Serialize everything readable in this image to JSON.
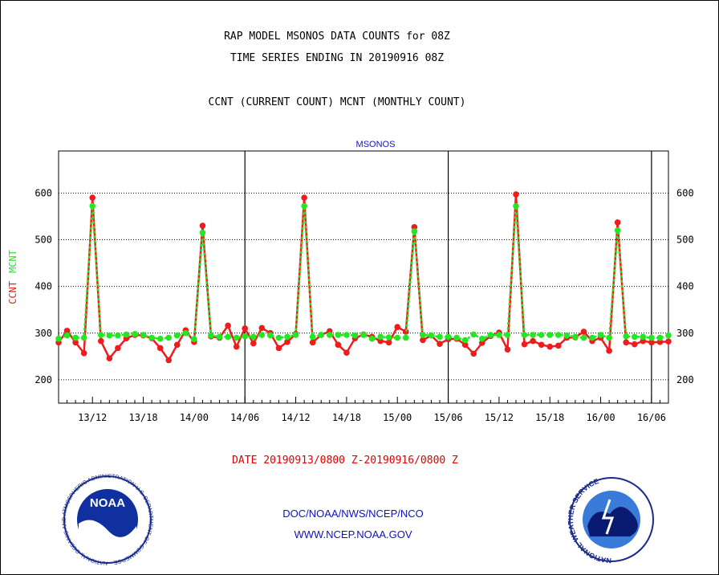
{
  "title_lines": [
    "RAP MODEL MSONOS DATA COUNTS for 08Z",
    "TIME SERIES ENDING IN 20190916 08Z",
    "CCNT (CURRENT COUNT) MCNT (MONTHLY COUNT)"
  ],
  "footer": {
    "line1": "DOC/NOAA/NWS/NCEP/NCO",
    "line2": "WWW.NCEP.NOAA.GOV"
  },
  "logos": {
    "left": "NOAA",
    "left_ring": "NATIONAL OCEANIC AND ATMOSPHERIC ADMINISTRATION U.S. DEPARTMENT OF COMMERCE",
    "right_ring": "NATIONAL WEATHER SERVICE"
  },
  "colors": {
    "ccnt": "#ee1c1c",
    "mcnt": "#22e822",
    "grid": "#000000",
    "text_blue": "#1010c8"
  },
  "chart_data": {
    "type": "line",
    "title": "MSONOS",
    "xlabel": "DATE 20190913/0800 Z-20190916/0800 Z",
    "ylabel": "CCNT MCNT",
    "ylabel_parts": [
      "CCNT",
      "MCNT"
    ],
    "ylim": [
      150,
      690
    ],
    "yticks": [
      200,
      300,
      400,
      500,
      600
    ],
    "x_start_hours_from_13_00": 8,
    "x_step_hours": 1,
    "xlim_hours_from_13_00": [
      8,
      80
    ],
    "xticks": [
      {
        "label": "13/12",
        "hours_from_13_00": 12
      },
      {
        "label": "13/18",
        "hours_from_13_00": 18
      },
      {
        "label": "14/00",
        "hours_from_13_00": 24
      },
      {
        "label": "14/06",
        "hours_from_13_00": 30
      },
      {
        "label": "14/12",
        "hours_from_13_00": 36
      },
      {
        "label": "14/18",
        "hours_from_13_00": 42
      },
      {
        "label": "15/00",
        "hours_from_13_00": 48
      },
      {
        "label": "15/06",
        "hours_from_13_00": 54
      },
      {
        "label": "15/12",
        "hours_from_13_00": 60
      },
      {
        "label": "15/18",
        "hours_from_13_00": 66
      },
      {
        "label": "16/00",
        "hours_from_13_00": 72
      },
      {
        "label": "16/06",
        "hours_from_13_00": 78
      }
    ],
    "day_boundaries_hours_from_13_00": [
      30,
      54,
      78
    ],
    "grid": true,
    "series": [
      {
        "name": "CCNT",
        "color": "#ee1c1c",
        "values": [
          280,
          305,
          280,
          257,
          590,
          283,
          246,
          268,
          289,
          296,
          295,
          289,
          268,
          242,
          275,
          306,
          281,
          530,
          293,
          290,
          316,
          271,
          310,
          278,
          311,
          300,
          268,
          281,
          298,
          590,
          280,
          296,
          304,
          275,
          258,
          289,
          297,
          292,
          283,
          280,
          313,
          303,
          527,
          285,
          295,
          277,
          287,
          288,
          275,
          256,
          279,
          294,
          301,
          265,
          597,
          276,
          283,
          275,
          271,
          273,
          290,
          291,
          303,
          283,
          290,
          262,
          537,
          280,
          276,
          283,
          280,
          281,
          282
        ]
      },
      {
        "name": "MCNT",
        "color": "#22e822",
        "values": [
          288,
          295,
          290,
          290,
          572,
          296,
          295,
          295,
          297,
          298,
          296,
          290,
          288,
          290,
          295,
          300,
          287,
          515,
          295,
          292,
          292,
          290,
          293,
          292,
          296,
          295,
          290,
          292,
          296,
          572,
          292,
          296,
          296,
          296,
          296,
          295,
          296,
          288,
          292,
          291,
          290,
          290,
          518,
          296,
          295,
          292,
          292,
          290,
          285,
          297,
          288,
          296,
          296,
          296,
          572,
          296,
          296,
          296,
          296,
          296,
          295,
          292,
          290,
          290,
          296,
          290,
          520,
          293,
          292,
          292,
          290,
          290,
          295
        ]
      }
    ]
  }
}
